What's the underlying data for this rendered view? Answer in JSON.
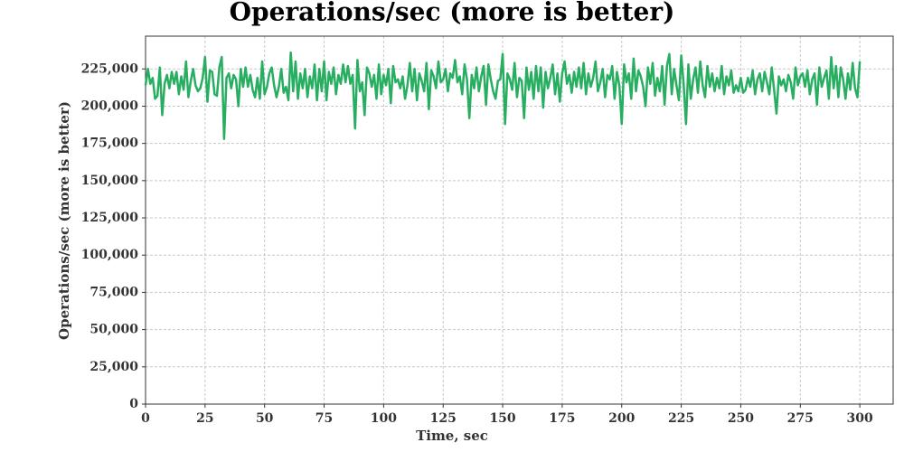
{
  "chart_data": {
    "type": "line",
    "title": "Operations/sec (more is better)",
    "x_label": "Time, sec",
    "y_label": "Operations/sec (more is better)",
    "x": [
      0,
      1,
      2,
      3,
      4,
      5,
      6,
      7,
      8,
      9,
      10,
      11,
      12,
      13,
      14,
      15,
      16,
      17,
      18,
      19,
      20,
      21,
      22,
      23,
      24,
      25,
      26,
      27,
      28,
      29,
      30,
      31,
      32,
      33,
      34,
      35,
      36,
      37,
      38,
      39,
      40,
      41,
      42,
      43,
      44,
      45,
      46,
      47,
      48,
      49,
      50,
      51,
      52,
      53,
      54,
      55,
      56,
      57,
      58,
      59,
      60,
      61,
      62,
      63,
      64,
      65,
      66,
      67,
      68,
      69,
      70,
      71,
      72,
      73,
      74,
      75,
      76,
      77,
      78,
      79,
      80,
      81,
      82,
      83,
      84,
      85,
      86,
      87,
      88,
      89,
      90,
      91,
      92,
      93,
      94,
      95,
      96,
      97,
      98,
      99,
      100,
      101,
      102,
      103,
      104,
      105,
      106,
      107,
      108,
      109,
      110,
      111,
      112,
      113,
      114,
      115,
      116,
      117,
      118,
      119,
      120,
      121,
      122,
      123,
      124,
      125,
      126,
      127,
      128,
      129,
      130,
      131,
      132,
      133,
      134,
      135,
      136,
      137,
      138,
      139,
      140,
      141,
      142,
      143,
      144,
      145,
      146,
      147,
      148,
      149,
      150,
      151,
      152,
      153,
      154,
      155,
      156,
      157,
      158,
      159,
      160,
      161,
      162,
      163,
      164,
      165,
      166,
      167,
      168,
      169,
      170,
      171,
      172,
      173,
      174,
      175,
      176,
      177,
      178,
      179,
      180,
      181,
      182,
      183,
      184,
      185,
      186,
      187,
      188,
      189,
      190,
      191,
      192,
      193,
      194,
      195,
      196,
      197,
      198,
      199,
      200,
      201,
      202,
      203,
      204,
      205,
      206,
      207,
      208,
      209,
      210,
      211,
      212,
      213,
      214,
      215,
      216,
      217,
      218,
      219,
      220,
      221,
      222,
      223,
      224,
      225,
      226,
      227,
      228,
      229,
      230,
      231,
      232,
      233,
      234,
      235,
      236,
      237,
      238,
      239,
      240,
      241,
      242,
      243,
      244,
      245,
      246,
      247,
      248,
      249,
      250,
      251,
      252,
      253,
      254,
      255,
      256,
      257,
      258,
      259,
      260,
      261,
      262,
      263,
      264,
      265,
      266,
      267,
      268,
      269,
      270,
      271,
      272,
      273,
      274,
      275,
      276,
      277,
      278,
      279,
      280,
      281,
      282,
      283,
      284,
      285,
      286,
      287,
      288,
      289,
      290,
      291,
      292,
      293,
      294,
      295,
      296,
      297,
      298,
      299,
      300
    ],
    "series": [
      {
        "color": "#27ae60",
        "values": [
          214000,
          225000,
          215000,
          219000,
          205000,
          207000,
          226000,
          194000,
          215000,
          221000,
          212000,
          223000,
          215000,
          223000,
          208000,
          220000,
          211000,
          230000,
          206000,
          217000,
          225000,
          214000,
          210000,
          212000,
          219000,
          233000,
          203000,
          224000,
          223000,
          208000,
          207000,
          226000,
          233000,
          178000,
          219000,
          222000,
          212000,
          221000,
          218000,
          200000,
          225000,
          213000,
          226000,
          213000,
          221000,
          211000,
          206000,
          219000,
          205000,
          230000,
          208000,
          213000,
          222000,
          226000,
          214000,
          206000,
          213000,
          225000,
          209000,
          213000,
          204000,
          236000,
          210000,
          230000,
          205000,
          222000,
          212000,
          225000,
          206000,
          220000,
          212000,
          228000,
          204000,
          225000,
          210000,
          230000,
          204000,
          223000,
          215000,
          226000,
          208000,
          221000,
          215000,
          228000,
          216000,
          227000,
          215000,
          221000,
          185000,
          231000,
          210000,
          216000,
          194000,
          226000,
          222000,
          213000,
          221000,
          205000,
          228000,
          208000,
          221000,
          214000,
          225000,
          202000,
          227000,
          216000,
          218000,
          212000,
          220000,
          205000,
          214000,
          229000,
          210000,
          225000,
          204000,
          222000,
          217000,
          210000,
          229000,
          198000,
          224000,
          220000,
          212000,
          230000,
          216000,
          218000,
          225000,
          210000,
          222000,
          219000,
          231000,
          216000,
          220000,
          208000,
          228000,
          218000,
          192000,
          221000,
          212000,
          226000,
          210000,
          220000,
          227000,
          201000,
          228000,
          218000,
          210000,
          205000,
          217000,
          218000,
          235000,
          188000,
          222000,
          218000,
          211000,
          229000,
          206000,
          219000,
          217000,
          192000,
          226000,
          211000,
          223000,
          205000,
          227000,
          210000,
          226000,
          199000,
          223000,
          212000,
          219000,
          228000,
          208000,
          222000,
          203000,
          222000,
          230000,
          215000,
          221000,
          209000,
          223000,
          213000,
          226000,
          212000,
          229000,
          208000,
          222000,
          213000,
          219000,
          230000,
          210000,
          216000,
          225000,
          206000,
          221000,
          218000,
          227000,
          205000,
          223000,
          214000,
          188000,
          228000,
          216000,
          222000,
          205000,
          232000,
          210000,
          224000,
          220000,
          213000,
          200000,
          226000,
          215000,
          229000,
          207000,
          219000,
          210000,
          227000,
          201000,
          227000,
          235000,
          208000,
          225000,
          214000,
          204000,
          234000,
          215000,
          188000,
          228000,
          205000,
          218000,
          226000,
          209000,
          230000,
          214000,
          206000,
          227000,
          213000,
          222000,
          210000,
          219000,
          212000,
          227000,
          208000,
          220000,
          214000,
          224000,
          209000,
          214000,
          210000,
          219000,
          209000,
          211000,
          219000,
          213000,
          224000,
          208000,
          218000,
          222000,
          210000,
          223000,
          216000,
          208000,
          226000,
          211000,
          195000,
          220000,
          214000,
          218000,
          210000,
          221000,
          216000,
          205000,
          226000,
          214000,
          220000,
          222000,
          213000,
          224000,
          208000,
          218000,
          222000,
          201000,
          226000,
          213000,
          219000,
          224000,
          205000,
          233000,
          212000,
          227000,
          206000,
          226000,
          218000,
          205000,
          222000,
          211000,
          229000,
          212000,
          206000,
          230000
        ]
      }
    ],
    "xlim": [
      0,
      314
    ],
    "ylim": [
      0,
      247000
    ],
    "xticks": [
      0,
      25,
      50,
      75,
      100,
      125,
      150,
      175,
      200,
      225,
      250,
      275,
      300
    ],
    "yticks": [
      0,
      {
        "value": 25000,
        "label": "25,000"
      },
      {
        "value": 50000,
        "label": "50,000"
      },
      {
        "value": 75000,
        "label": "75,000"
      },
      {
        "value": 100000,
        "label": "100,000"
      },
      {
        "value": 125000,
        "label": "125,000"
      },
      {
        "value": 150000,
        "label": "150,000"
      },
      {
        "value": 175000,
        "label": "175,000"
      },
      {
        "value": 200000,
        "label": "200,000"
      },
      {
        "value": 225000,
        "label": "225,000"
      }
    ],
    "grid": true
  }
}
